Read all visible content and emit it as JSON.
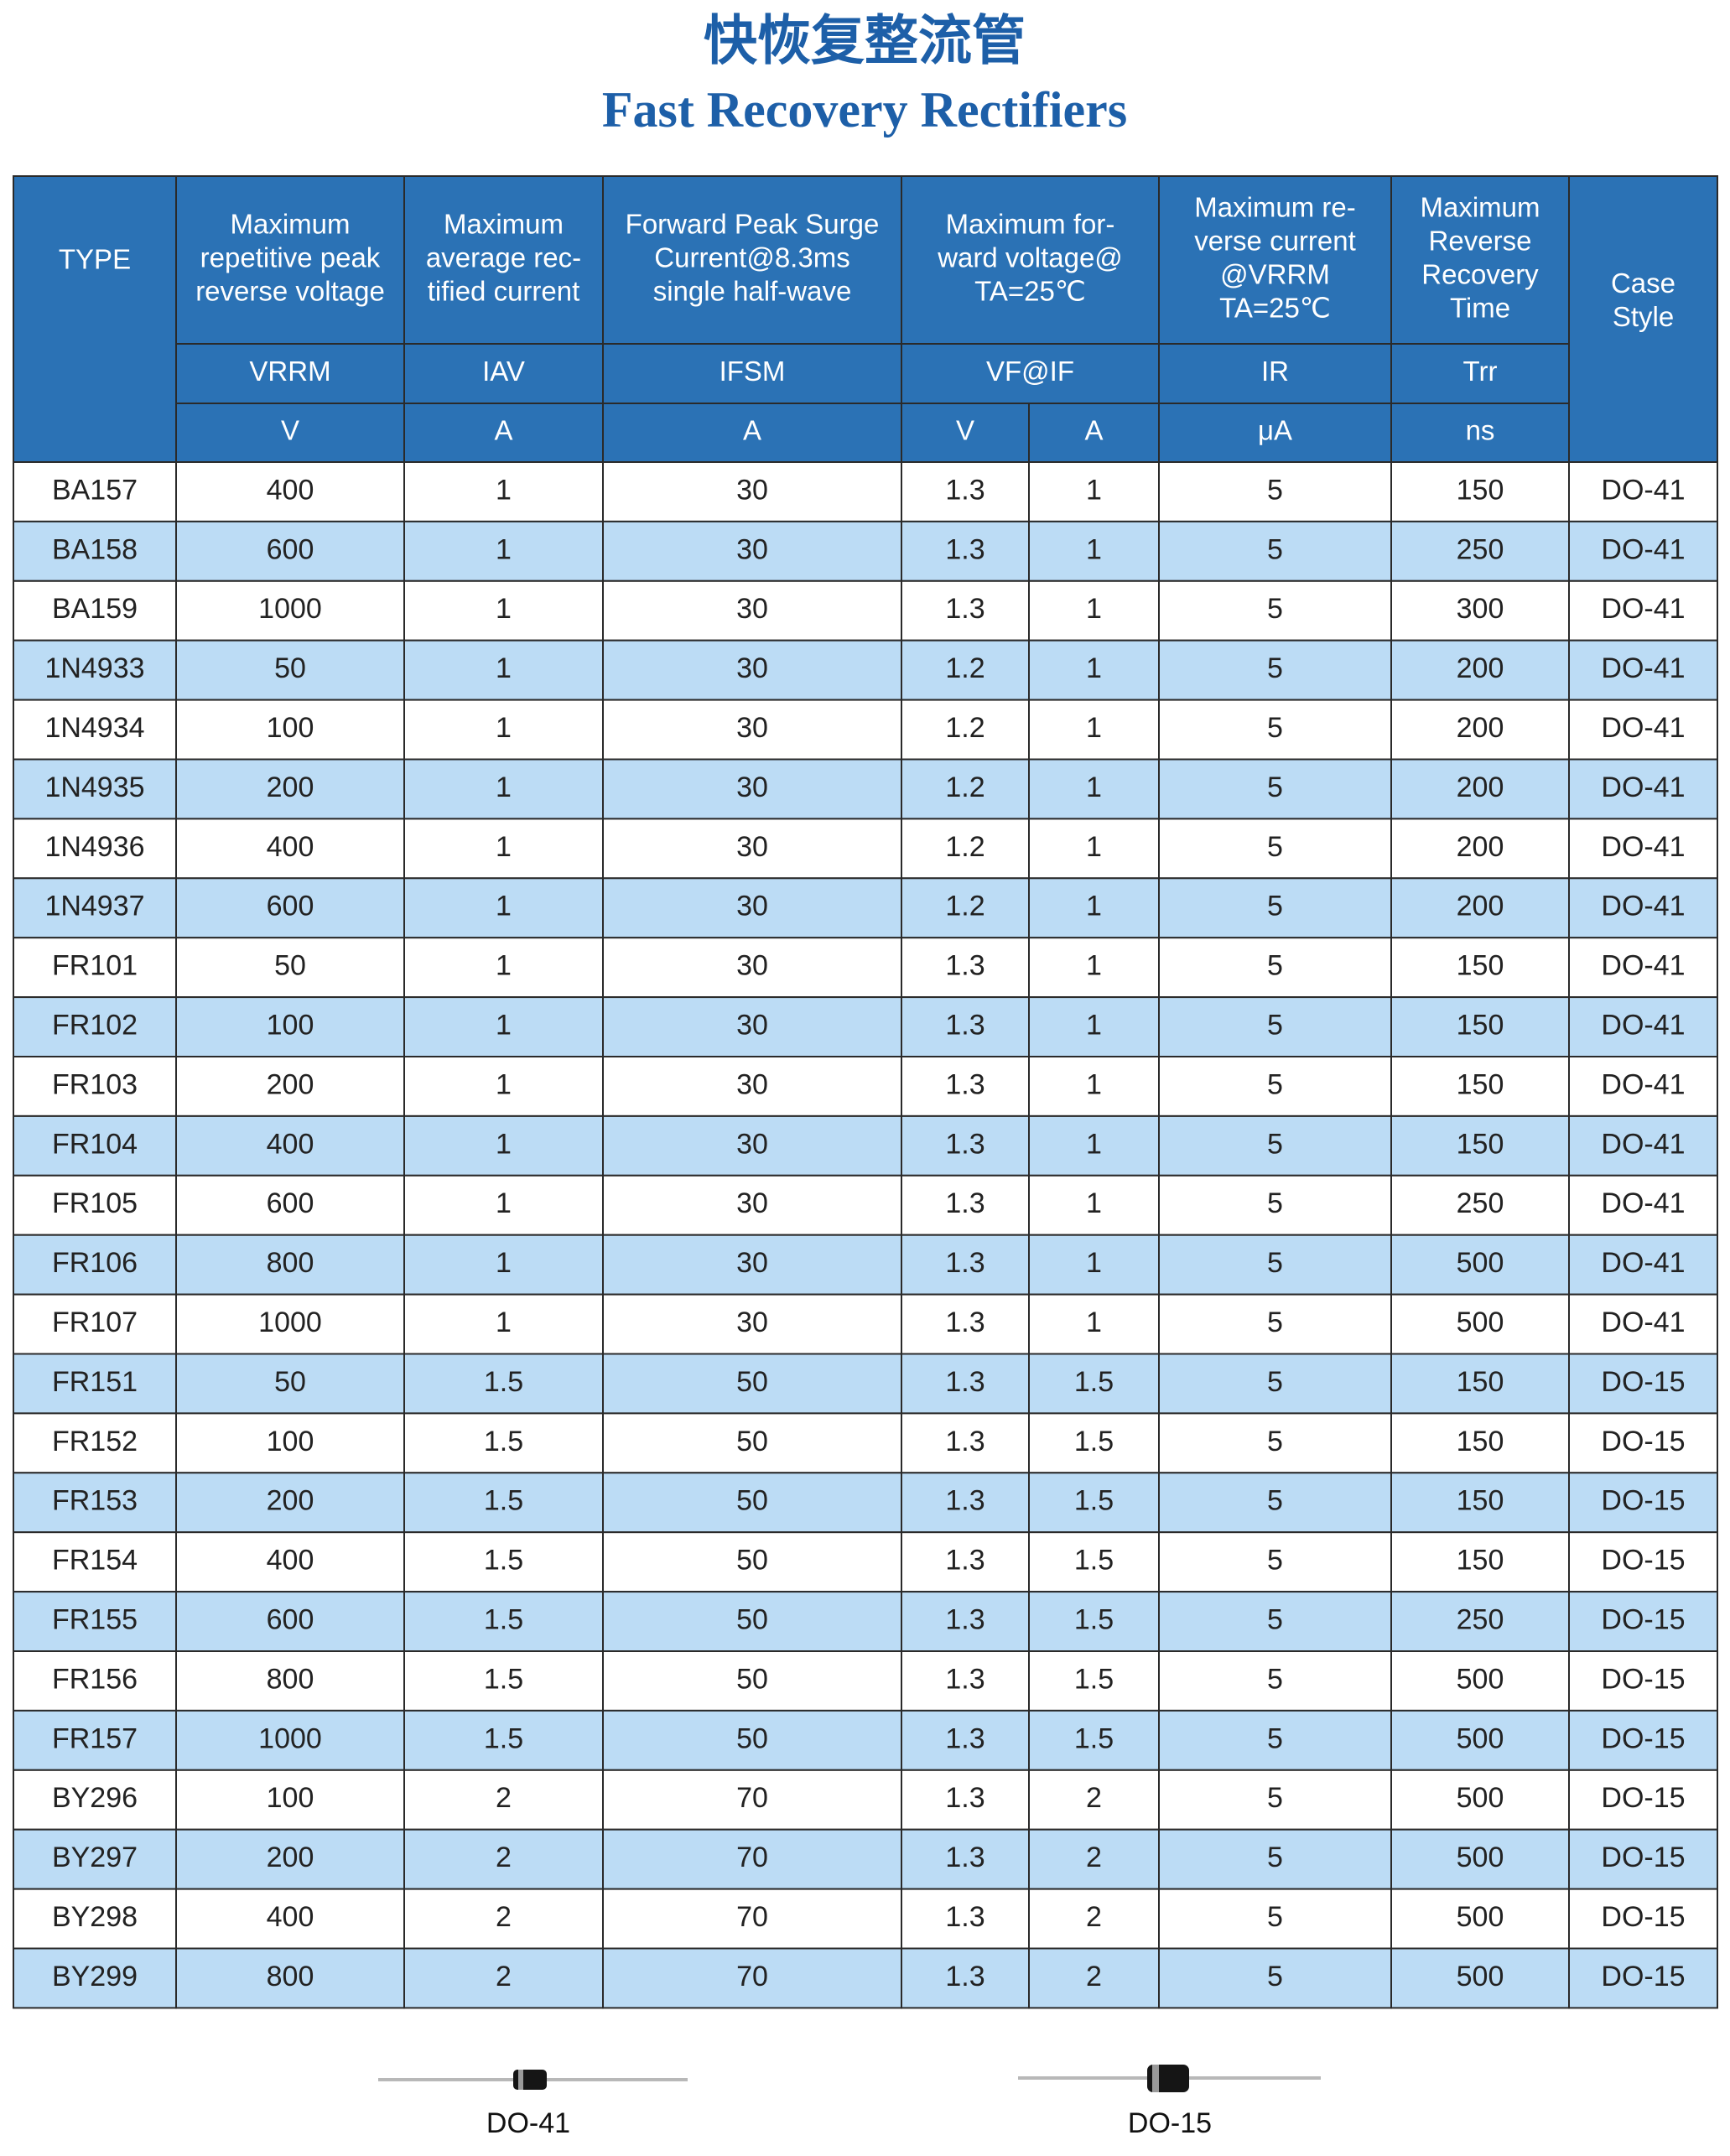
{
  "header": {
    "title_cn": "快恢复整流管",
    "title_en": "Fast Recovery Rectifiers"
  },
  "table": {
    "type_header": "TYPE",
    "case_header": [
      "Case",
      "Style"
    ],
    "columns": [
      [
        "Maximum",
        "repetitive peak",
        "reverse voltage"
      ],
      [
        "Maximum",
        "average rec-",
        "tified current"
      ],
      [
        "Forward Peak Surge",
        "Current@8.3ms",
        "single half-wave"
      ],
      [
        "Maximum for-",
        "ward voltage@",
        "TA=25℃"
      ],
      [
        "Maximum re-",
        "verse current",
        "@VRRM",
        "TA=25℃"
      ],
      [
        "Maximum",
        "Reverse",
        "Recovery",
        "Time"
      ]
    ],
    "symbols": [
      "VRRM",
      "IAV",
      "IFSM",
      "VF@IF",
      "IR",
      "Trr"
    ],
    "units": [
      "V",
      "A",
      "A",
      "V",
      "A",
      "μA",
      "ns"
    ],
    "rows": [
      [
        "BA157",
        "400",
        "1",
        "30",
        "1.3",
        "1",
        "5",
        "150",
        "DO-41"
      ],
      [
        "BA158",
        "600",
        "1",
        "30",
        "1.3",
        "1",
        "5",
        "250",
        "DO-41"
      ],
      [
        "BA159",
        "1000",
        "1",
        "30",
        "1.3",
        "1",
        "5",
        "300",
        "DO-41"
      ],
      [
        "1N4933",
        "50",
        "1",
        "30",
        "1.2",
        "1",
        "5",
        "200",
        "DO-41"
      ],
      [
        "1N4934",
        "100",
        "1",
        "30",
        "1.2",
        "1",
        "5",
        "200",
        "DO-41"
      ],
      [
        "1N4935",
        "200",
        "1",
        "30",
        "1.2",
        "1",
        "5",
        "200",
        "DO-41"
      ],
      [
        "1N4936",
        "400",
        "1",
        "30",
        "1.2",
        "1",
        "5",
        "200",
        "DO-41"
      ],
      [
        "1N4937",
        "600",
        "1",
        "30",
        "1.2",
        "1",
        "5",
        "200",
        "DO-41"
      ],
      [
        "FR101",
        "50",
        "1",
        "30",
        "1.3",
        "1",
        "5",
        "150",
        "DO-41"
      ],
      [
        "FR102",
        "100",
        "1",
        "30",
        "1.3",
        "1",
        "5",
        "150",
        "DO-41"
      ],
      [
        "FR103",
        "200",
        "1",
        "30",
        "1.3",
        "1",
        "5",
        "150",
        "DO-41"
      ],
      [
        "FR104",
        "400",
        "1",
        "30",
        "1.3",
        "1",
        "5",
        "150",
        "DO-41"
      ],
      [
        "FR105",
        "600",
        "1",
        "30",
        "1.3",
        "1",
        "5",
        "250",
        "DO-41"
      ],
      [
        "FR106",
        "800",
        "1",
        "30",
        "1.3",
        "1",
        "5",
        "500",
        "DO-41"
      ],
      [
        "FR107",
        "1000",
        "1",
        "30",
        "1.3",
        "1",
        "5",
        "500",
        "DO-41"
      ],
      [
        "FR151",
        "50",
        "1.5",
        "50",
        "1.3",
        "1.5",
        "5",
        "150",
        "DO-15"
      ],
      [
        "FR152",
        "100",
        "1.5",
        "50",
        "1.3",
        "1.5",
        "5",
        "150",
        "DO-15"
      ],
      [
        "FR153",
        "200",
        "1.5",
        "50",
        "1.3",
        "1.5",
        "5",
        "150",
        "DO-15"
      ],
      [
        "FR154",
        "400",
        "1.5",
        "50",
        "1.3",
        "1.5",
        "5",
        "150",
        "DO-15"
      ],
      [
        "FR155",
        "600",
        "1.5",
        "50",
        "1.3",
        "1.5",
        "5",
        "250",
        "DO-15"
      ],
      [
        "FR156",
        "800",
        "1.5",
        "50",
        "1.3",
        "1.5",
        "5",
        "500",
        "DO-15"
      ],
      [
        "FR157",
        "1000",
        "1.5",
        "50",
        "1.3",
        "1.5",
        "5",
        "500",
        "DO-15"
      ],
      [
        "BY296",
        "100",
        "2",
        "70",
        "1.3",
        "2",
        "5",
        "500",
        "DO-15"
      ],
      [
        "BY297",
        "200",
        "2",
        "70",
        "1.3",
        "2",
        "5",
        "500",
        "DO-15"
      ],
      [
        "BY298",
        "400",
        "2",
        "70",
        "1.3",
        "2",
        "5",
        "500",
        "DO-15"
      ],
      [
        "BY299",
        "800",
        "2",
        "70",
        "1.3",
        "2",
        "5",
        "500",
        "DO-15"
      ]
    ]
  },
  "packages": [
    "DO-41",
    "DO-15"
  ]
}
